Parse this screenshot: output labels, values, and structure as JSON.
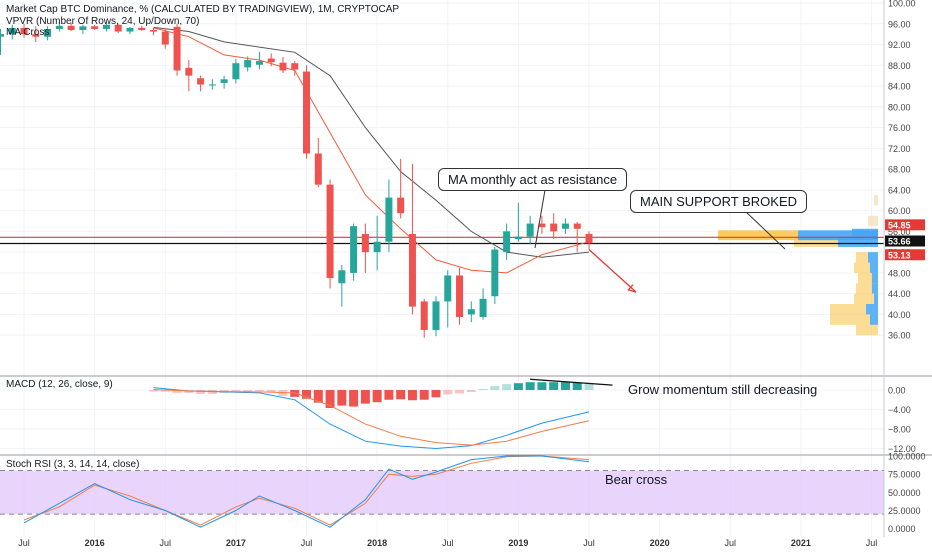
{
  "legends": {
    "main": "Market Cap BTC Dominance, % (CALCULATED BY TRADINGVIEW), 1M, CRYPTOCAP",
    "vpvr": "VPVR (Number Of Rows, 24, Up/Down, 70)",
    "ma": "MA Cross",
    "macd": "MACD (12, 26, close, 9)",
    "stoch": "Stoch RSI (3, 3, 14, 14, close)"
  },
  "annotations": {
    "resistance": "MA monthly act as resistance",
    "support": "MAIN SUPPORT BROKED",
    "momentum": "Grow momentum still decreasing",
    "bear_cross": "Bear cross"
  },
  "price_labels": {
    "p1": "54.85",
    "p2": "53.66",
    "p3": "53.13"
  },
  "colors": {
    "up": "#26a69a",
    "down": "#ef5350",
    "ma_fast": "#f05a3a",
    "ma_slow": "#555555",
    "macd_line": "#2196f3",
    "signal_line": "#f57c4a",
    "support_line": "#e53935",
    "vp_up": "#42a5f5",
    "vp_down": "#f9c74f",
    "stoch_band": "#e1c6fb"
  },
  "chart_data": [
    {
      "type": "candlestick",
      "title": "Market Cap BTC Dominance, % (CALCULATED BY TRADINGVIEW), 1M, CRYPTOCAP",
      "x_ticks": [
        "Jul",
        "2016",
        "Jul",
        "2017",
        "Jul",
        "2018",
        "Jul",
        "2019",
        "Jul",
        "2020",
        "Jul",
        "2021",
        "Jul"
      ],
      "y_ticks": [
        "100.00",
        "96.00",
        "92.00",
        "88.00",
        "84.00",
        "80.00",
        "76.00",
        "72.00",
        "68.00",
        "64.00",
        "60.00",
        "56.00",
        "52.00",
        "48.00",
        "44.00",
        "40.00",
        "36.00"
      ],
      "ylim": [
        34,
        100
      ],
      "candles": [
        {
          "d": "2015-05",
          "o": 93.5,
          "h": 95.0,
          "l": 90.0,
          "c": 94.0
        },
        {
          "d": "2015-06",
          "o": 94.0,
          "h": 95.8,
          "l": 93.0,
          "c": 95.2
        },
        {
          "d": "2015-07",
          "o": 95.2,
          "h": 96.0,
          "l": 93.3,
          "c": 94.0
        },
        {
          "d": "2015-08",
          "o": 94.0,
          "h": 95.5,
          "l": 92.5,
          "c": 93.5
        },
        {
          "d": "2015-09",
          "o": 93.5,
          "h": 95.5,
          "l": 92.8,
          "c": 95.0
        },
        {
          "d": "2015-10",
          "o": 95.0,
          "h": 96.5,
          "l": 94.5,
          "c": 95.6
        },
        {
          "d": "2015-11",
          "o": 95.6,
          "h": 96.2,
          "l": 94.6,
          "c": 94.8
        },
        {
          "d": "2015-12",
          "o": 94.8,
          "h": 95.8,
          "l": 94.0,
          "c": 95.5
        },
        {
          "d": "2016-01",
          "o": 95.5,
          "h": 95.8,
          "l": 94.8,
          "c": 95.0
        },
        {
          "d": "2016-02",
          "o": 95.0,
          "h": 96.3,
          "l": 94.5,
          "c": 95.8
        },
        {
          "d": "2016-03",
          "o": 95.8,
          "h": 96.0,
          "l": 94.2,
          "c": 94.5
        },
        {
          "d": "2016-04",
          "o": 94.5,
          "h": 95.4,
          "l": 94.0,
          "c": 95.2
        },
        {
          "d": "2016-05",
          "o": 95.2,
          "h": 95.6,
          "l": 94.6,
          "c": 94.8
        },
        {
          "d": "2016-06",
          "o": 94.8,
          "h": 95.2,
          "l": 93.8,
          "c": 94.5
        },
        {
          "d": "2016-07",
          "o": 94.5,
          "h": 95.1,
          "l": 91.2,
          "c": 92.0
        },
        {
          "d": "2016-08",
          "o": 95.4,
          "h": 96.0,
          "l": 86.0,
          "c": 87.0
        },
        {
          "d": "2016-09",
          "o": 87.5,
          "h": 89.0,
          "l": 83.0,
          "c": 86.0
        },
        {
          "d": "2016-10",
          "o": 85.5,
          "h": 86.0,
          "l": 83.0,
          "c": 84.3
        },
        {
          "d": "2016-11",
          "o": 84.3,
          "h": 85.3,
          "l": 83.3,
          "c": 84.3
        },
        {
          "d": "2016-12",
          "o": 84.6,
          "h": 86.0,
          "l": 83.5,
          "c": 85.3
        },
        {
          "d": "2017-01",
          "o": 85.3,
          "h": 89.2,
          "l": 84.5,
          "c": 88.4
        },
        {
          "d": "2017-02",
          "o": 87.6,
          "h": 89.7,
          "l": 86.8,
          "c": 89.0
        },
        {
          "d": "2017-03",
          "o": 88.1,
          "h": 90.6,
          "l": 87.2,
          "c": 88.8
        },
        {
          "d": "2017-04",
          "o": 89.3,
          "h": 90.3,
          "l": 87.8,
          "c": 88.6
        },
        {
          "d": "2017-05",
          "o": 88.5,
          "h": 89.6,
          "l": 86.5,
          "c": 87.0
        },
        {
          "d": "2017-06",
          "o": 88.4,
          "h": 88.8,
          "l": 86.0,
          "c": 87.2
        },
        {
          "d": "2017-07",
          "o": 86.8,
          "h": 88.0,
          "l": 70.0,
          "c": 71.0
        },
        {
          "d": "2017-08",
          "o": 71.0,
          "h": 74.0,
          "l": 64.5,
          "c": 65.0
        },
        {
          "d": "2017-09",
          "o": 65.0,
          "h": 66.0,
          "l": 45.0,
          "c": 47.0
        },
        {
          "d": "2017-10",
          "o": 46.0,
          "h": 49.5,
          "l": 41.5,
          "c": 48.5
        },
        {
          "d": "2017-11",
          "o": 48.0,
          "h": 57.5,
          "l": 46.5,
          "c": 57.0
        },
        {
          "d": "2017-12",
          "o": 55.5,
          "h": 57.5,
          "l": 48.0,
          "c": 52.0
        },
        {
          "d": "2018-01",
          "o": 52.0,
          "h": 59.0,
          "l": 48.5,
          "c": 54.0
        },
        {
          "d": "2018-02",
          "o": 54.0,
          "h": 66.0,
          "l": 52.0,
          "c": 62.5
        },
        {
          "d": "2018-03",
          "o": 62.5,
          "h": 70.0,
          "l": 58.5,
          "c": 59.5
        },
        {
          "d": "2018-04",
          "o": 55.5,
          "h": 69.0,
          "l": 40.0,
          "c": 41.5
        },
        {
          "d": "2018-05",
          "o": 42.5,
          "h": 43.0,
          "l": 35.5,
          "c": 37.0
        },
        {
          "d": "2018-06",
          "o": 37.0,
          "h": 43.5,
          "l": 35.8,
          "c": 42.5
        },
        {
          "d": "2018-07",
          "o": 42.5,
          "h": 48.5,
          "l": 37.5,
          "c": 47.5
        },
        {
          "d": "2018-08",
          "o": 47.5,
          "h": 49.0,
          "l": 38.0,
          "c": 39.5
        },
        {
          "d": "2018-09",
          "o": 40.0,
          "h": 42.5,
          "l": 38.5,
          "c": 41.0
        },
        {
          "d": "2018-10",
          "o": 39.5,
          "h": 45.0,
          "l": 39.0,
          "c": 43.0
        },
        {
          "d": "2018-11",
          "o": 43.5,
          "h": 53.0,
          "l": 42.0,
          "c": 52.5
        },
        {
          "d": "2018-12",
          "o": 52.0,
          "h": 57.5,
          "l": 50.5,
          "c": 56.0
        },
        {
          "d": "2019-01",
          "o": 54.5,
          "h": 61.5,
          "l": 54.0,
          "c": 55.0
        },
        {
          "d": "2019-02",
          "o": 55.0,
          "h": 59.0,
          "l": 53.5,
          "c": 57.5
        },
        {
          "d": "2019-03",
          "o": 57.5,
          "h": 59.0,
          "l": 55.5,
          "c": 56.8
        },
        {
          "d": "2019-04",
          "o": 57.5,
          "h": 59.5,
          "l": 54.5,
          "c": 56.0
        },
        {
          "d": "2019-05",
          "o": 56.5,
          "h": 58.5,
          "l": 55.5,
          "c": 57.5
        },
        {
          "d": "2019-06",
          "o": 57.5,
          "h": 57.8,
          "l": 52.0,
          "c": 56.5
        },
        {
          "d": "2019-07",
          "o": 55.5,
          "h": 56.0,
          "l": 52.5,
          "c": 53.7
        }
      ],
      "ma_fast": [
        [
          "2016-06",
          95.2
        ],
        [
          "2016-09",
          93.5
        ],
        [
          "2016-12",
          90.0
        ],
        [
          "2017-03",
          89.0
        ],
        [
          "2017-06",
          87.0
        ],
        [
          "2017-09",
          75.0
        ],
        [
          "2017-12",
          63.0
        ],
        [
          "2018-03",
          56.5
        ],
        [
          "2018-06",
          50.5
        ],
        [
          "2018-09",
          48.5
        ],
        [
          "2018-12",
          48.0
        ],
        [
          "2019-03",
          51.5
        ],
        [
          "2019-07",
          54.0
        ]
      ],
      "ma_slow": [
        [
          "2016-06",
          95.3
        ],
        [
          "2016-09",
          94.5
        ],
        [
          "2016-12",
          92.5
        ],
        [
          "2017-03",
          91.5
        ],
        [
          "2017-06",
          90.5
        ],
        [
          "2017-09",
          86.0
        ],
        [
          "2017-12",
          76.0
        ],
        [
          "2018-03",
          67.5
        ],
        [
          "2018-06",
          62.0
        ],
        [
          "2018-09",
          56.0
        ],
        [
          "2018-12",
          52.0
        ],
        [
          "2019-03",
          51.0
        ],
        [
          "2019-07",
          52.0
        ]
      ],
      "support_levels": [
        54.85,
        53.66
      ],
      "projection": {
        "from": [
          "2019-07",
          52.5
        ],
        "to": [
          "2019-11",
          44.3
        ]
      }
    },
    {
      "type": "bar",
      "title": "MACD (12, 26, close, 9)",
      "y_ticks": [
        "0.00",
        "−4.00",
        "−8.00",
        "−12.00"
      ],
      "ylim": [
        -12.8,
        1.8
      ],
      "histogram": [
        [
          "2016-06",
          -0.3
        ],
        [
          "2016-07",
          -0.3
        ],
        [
          "2016-08",
          -0.6
        ],
        [
          "2016-09",
          -0.6
        ],
        [
          "2016-10",
          -0.8
        ],
        [
          "2016-11",
          -0.8
        ],
        [
          "2016-12",
          -0.6
        ],
        [
          "2017-01",
          -0.2
        ],
        [
          "2017-02",
          -0.3
        ],
        [
          "2017-03",
          -0.2
        ],
        [
          "2017-04",
          -0.5
        ],
        [
          "2017-05",
          -1.2
        ],
        [
          "2017-06",
          -1.4
        ],
        [
          "2017-07",
          -1.8
        ],
        [
          "2017-08",
          -2.6
        ],
        [
          "2017-09",
          -3.7
        ],
        [
          "2017-10",
          -3.2
        ],
        [
          "2017-11",
          -3.4
        ],
        [
          "2017-12",
          -2.8
        ],
        [
          "2018-01",
          -2.5
        ],
        [
          "2018-02",
          -2.0
        ],
        [
          "2018-03",
          -1.9
        ],
        [
          "2018-04",
          -2.1
        ],
        [
          "2018-05",
          -2.0
        ],
        [
          "2018-06",
          -1.5
        ],
        [
          "2018-07",
          -0.9
        ],
        [
          "2018-08",
          -0.7
        ],
        [
          "2018-09",
          -0.4
        ],
        [
          "2018-10",
          0.2
        ],
        [
          "2018-11",
          0.8
        ],
        [
          "2018-12",
          1.2
        ],
        [
          "2019-01",
          1.4
        ],
        [
          "2019-02",
          1.6
        ],
        [
          "2019-03",
          1.6
        ],
        [
          "2019-04",
          1.6
        ],
        [
          "2019-05",
          1.6
        ],
        [
          "2019-06",
          1.5
        ],
        [
          "2019-07",
          1.3
        ]
      ],
      "macd_line": [
        [
          "2016-06",
          0.5
        ],
        [
          "2016-09",
          -0.2
        ],
        [
          "2016-12",
          -0.4
        ],
        [
          "2017-03",
          -0.6
        ],
        [
          "2017-06",
          -2.0
        ],
        [
          "2017-09",
          -7.0
        ],
        [
          "2017-12",
          -10.5
        ],
        [
          "2018-03",
          -11.5
        ],
        [
          "2018-06",
          -12.0
        ],
        [
          "2018-09",
          -11.4
        ],
        [
          "2018-12",
          -9.3
        ],
        [
          "2019-03",
          -6.8
        ],
        [
          "2019-07",
          -4.5
        ]
      ],
      "signal_line": [
        [
          "2016-06",
          0.1
        ],
        [
          "2016-09",
          -0.2
        ],
        [
          "2016-12",
          -0.3
        ],
        [
          "2017-03",
          -0.4
        ],
        [
          "2017-06",
          -0.6
        ],
        [
          "2017-09",
          -3.2
        ],
        [
          "2017-12",
          -7.0
        ],
        [
          "2018-03",
          -9.5
        ],
        [
          "2018-06",
          -10.8
        ],
        [
          "2018-09",
          -11.3
        ],
        [
          "2018-12",
          -10.5
        ],
        [
          "2019-03",
          -8.5
        ],
        [
          "2019-07",
          -6.3
        ]
      ]
    },
    {
      "type": "line",
      "title": "Stoch RSI (3, 3, 14, 14, close)",
      "y_ticks": [
        "100.0000",
        "75.0000",
        "50.0000",
        "25.0000",
        "0.0000"
      ],
      "ylim": [
        -5,
        103
      ],
      "band": [
        20,
        80
      ],
      "k_line": [
        [
          "2015-07",
          8
        ],
        [
          "2015-10",
          35
        ],
        [
          "2016-01",
          62
        ],
        [
          "2016-04",
          40
        ],
        [
          "2016-07",
          25
        ],
        [
          "2016-10",
          2
        ],
        [
          "2017-01",
          25
        ],
        [
          "2017-03",
          45
        ],
        [
          "2017-06",
          25
        ],
        [
          "2017-09",
          2
        ],
        [
          "2017-12",
          40
        ],
        [
          "2018-02",
          82
        ],
        [
          "2018-04",
          68
        ],
        [
          "2018-06",
          78
        ],
        [
          "2018-09",
          95
        ],
        [
          "2018-12",
          100
        ],
        [
          "2019-03",
          100
        ],
        [
          "2019-07",
          92
        ]
      ],
      "d_line": [
        [
          "2015-07",
          12
        ],
        [
          "2015-10",
          30
        ],
        [
          "2016-01",
          60
        ],
        [
          "2016-04",
          45
        ],
        [
          "2016-07",
          25
        ],
        [
          "2016-10",
          5
        ],
        [
          "2017-01",
          30
        ],
        [
          "2017-03",
          42
        ],
        [
          "2017-06",
          28
        ],
        [
          "2017-09",
          5
        ],
        [
          "2017-12",
          35
        ],
        [
          "2018-02",
          75
        ],
        [
          "2018-04",
          72
        ],
        [
          "2018-06",
          75
        ],
        [
          "2018-09",
          90
        ],
        [
          "2018-12",
          99
        ],
        [
          "2019-03",
          100
        ],
        [
          "2019-07",
          95
        ]
      ]
    }
  ]
}
